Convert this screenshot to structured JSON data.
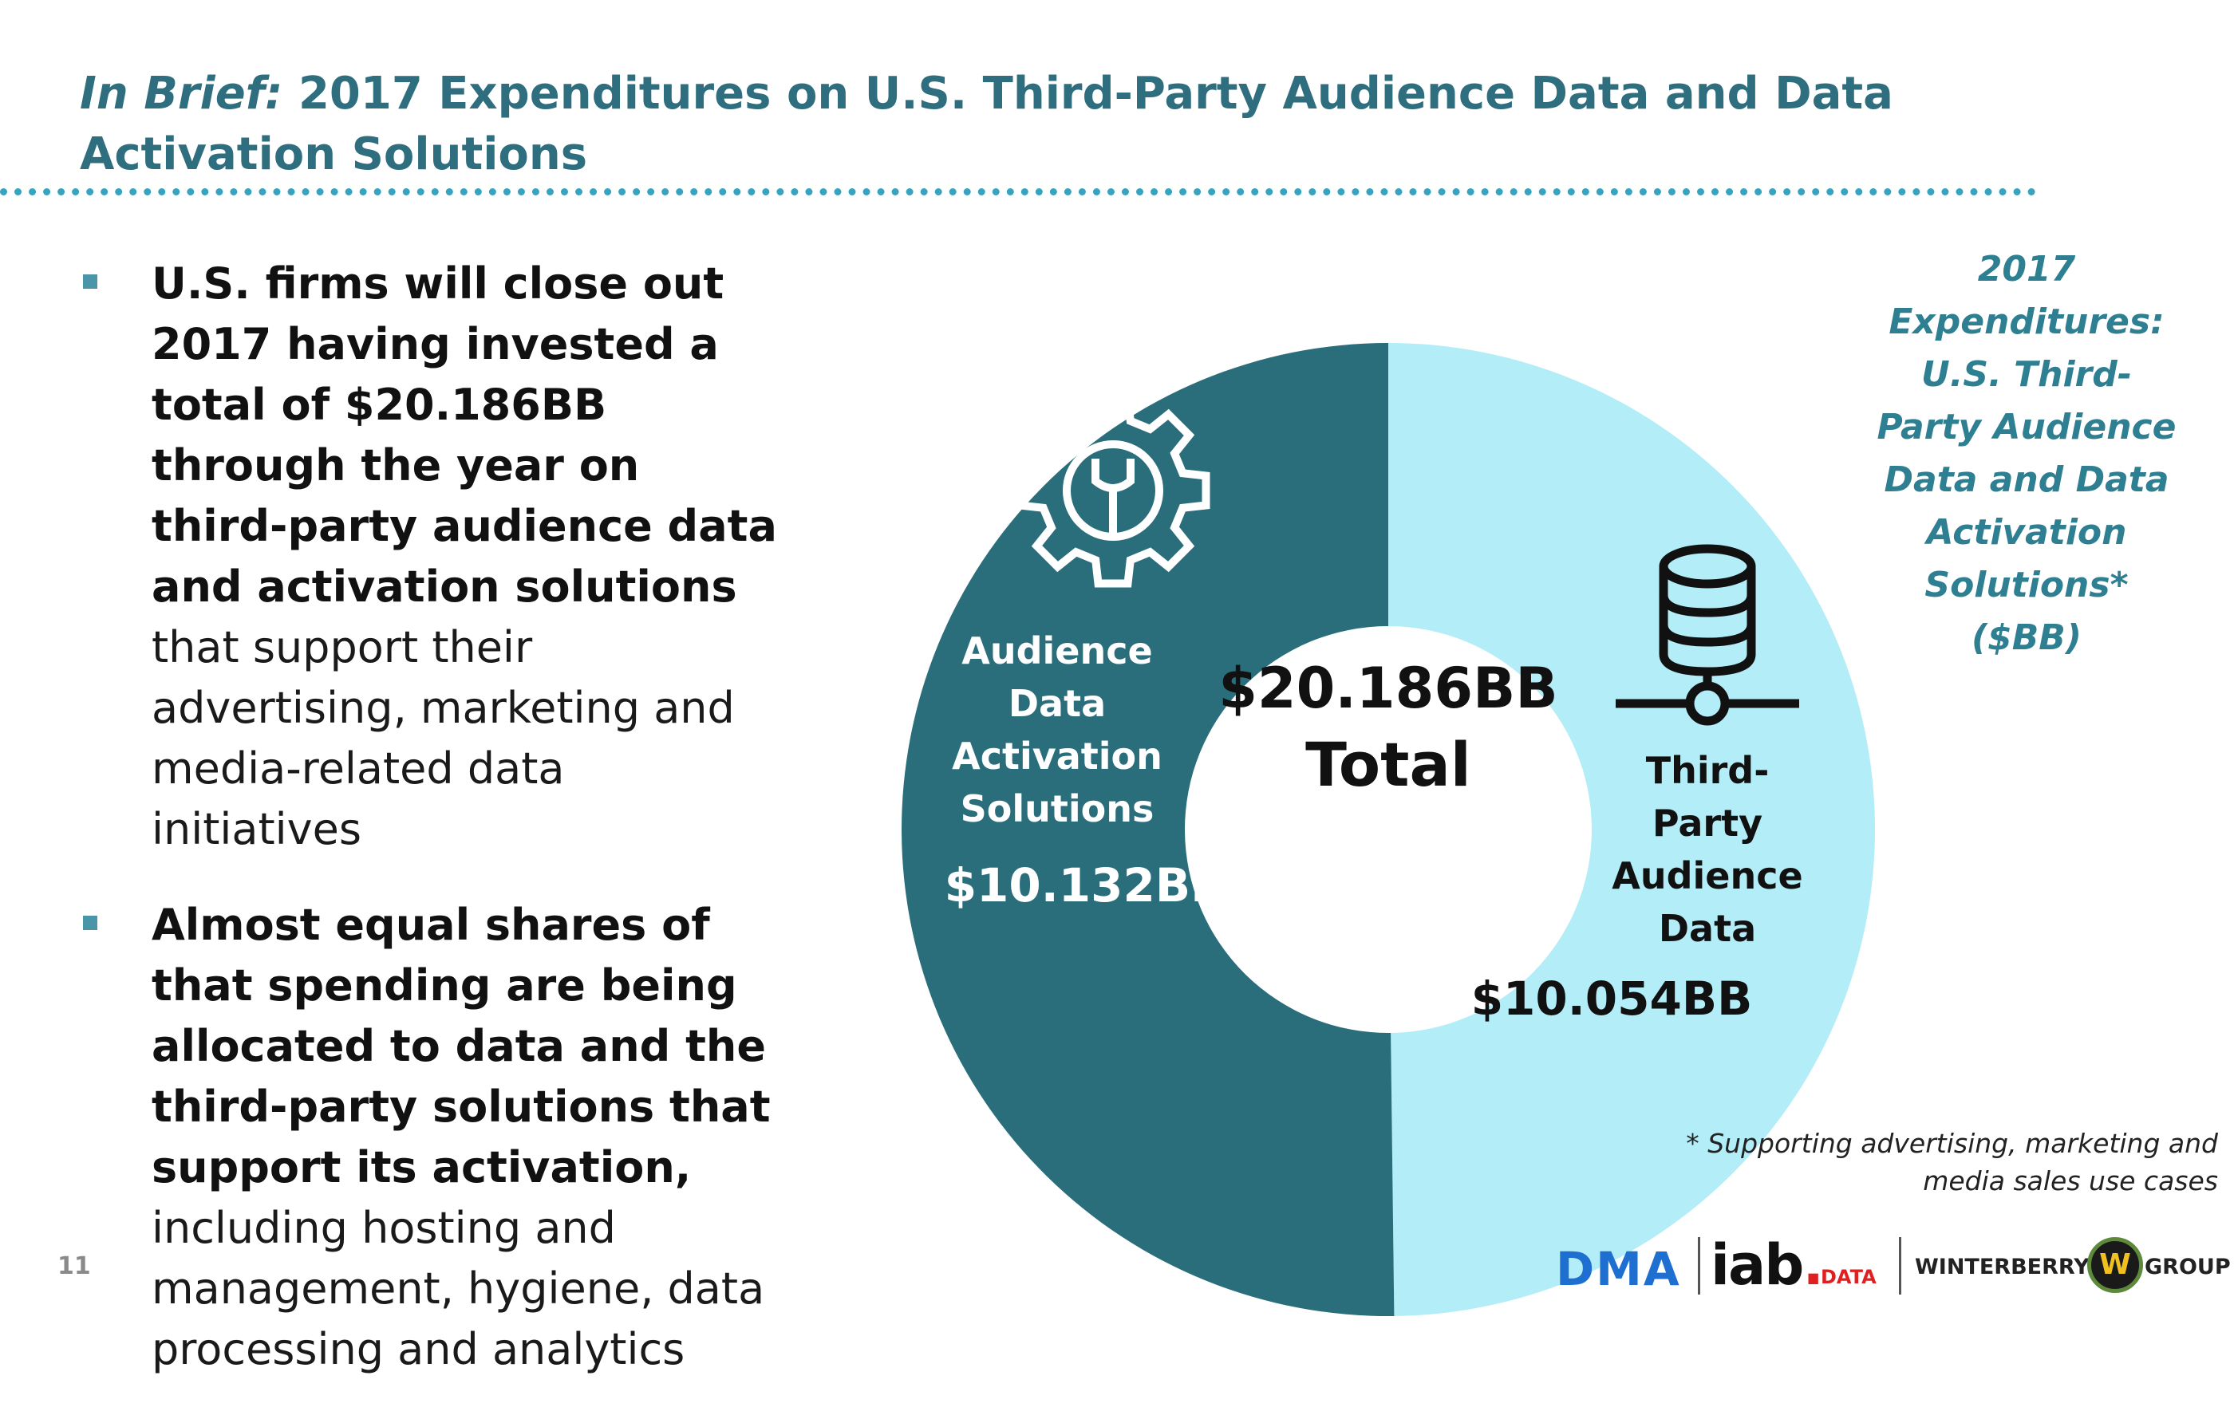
{
  "title": {
    "lead": "In Brief:",
    "rest": "2017 Expenditures on U.S. Third-Party Audience Data and Data Activation Solutions"
  },
  "bullets": [
    {
      "bold": "U.S. firms will close out 2017 having invested a total of $20.186BB through the year on third-party audience data and activation solutions",
      "normal": "that support their advertising, marketing and media-related data initiatives"
    },
    {
      "bold": "Almost equal shares of that spending are being allocated to data and the third-party solutions that support its activation,",
      "normal": "including hosting and management, hygiene, data processing and analytics"
    }
  ],
  "chart_data": {
    "type": "pie",
    "title": "2017 Expenditures: U.S. Third-Party Audience Data and Data Activation Solutions* ($BB)",
    "unit": "$BB",
    "categories": [
      "Audience Data Activation Solutions",
      "Third-Party Audience Data"
    ],
    "values": [
      10.132,
      10.054
    ],
    "value_labels": [
      "$10.132BB",
      "$10.054BB"
    ],
    "label_lines": [
      [
        "Audience",
        "Data",
        "Activation",
        "Solutions"
      ],
      [
        "Third-",
        "Party",
        "Audience",
        "Data"
      ]
    ],
    "colors": [
      "#2a6e7c",
      "#b3edf7"
    ],
    "center_lines": [
      "$20.186BB",
      "Total"
    ],
    "icons": [
      "gear-wrench-icon",
      "database-icon"
    ]
  },
  "side_label_lines": [
    "2017",
    "Expenditures:",
    "U.S. Third-",
    "Party Audience",
    "Data and Data",
    "Activation",
    "Solutions*",
    "($BB)"
  ],
  "footnote_lines": [
    "* Supporting advertising, marketing and",
    "media sales use cases"
  ],
  "page_number": "11",
  "logos": {
    "dma": "DMA",
    "iab": "iab",
    "iab_dot": ".",
    "iab_data": "DATA",
    "winterberry_left": "WINTERBERRY",
    "winterberry_mark": "W",
    "winterberry_right": "GROUP"
  }
}
